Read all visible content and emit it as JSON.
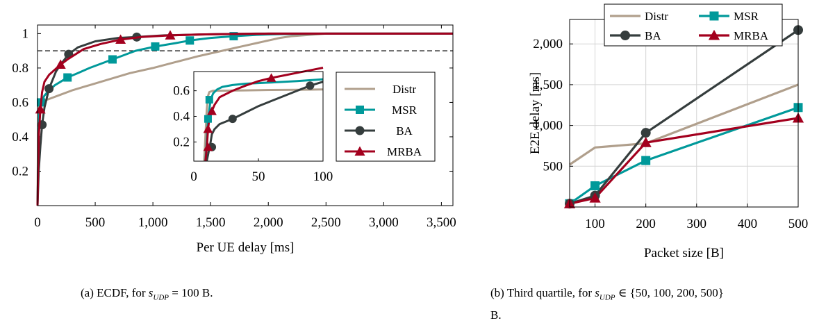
{
  "colors": {
    "Distr": "#b09f8c",
    "MSR": "#00999a",
    "BA": "#353d3d",
    "MRBA": "#a3001e",
    "threshold": "#000000"
  },
  "chart_data": [
    {
      "type": "line",
      "title": "",
      "xlabel": "Per UE delay [ms]",
      "ylabel": "",
      "xlim": [
        0,
        3600
      ],
      "ylim": [
        0,
        1.05
      ],
      "xticks": [
        "0",
        "500",
        "1,000",
        "1,500",
        "2,000",
        "2,500",
        "3,000",
        "3,500"
      ],
      "yticks": [
        "0.2",
        "0.4",
        "0.6",
        "0.8",
        "1"
      ],
      "reference_line": {
        "y": 0.9,
        "style": "dashed"
      },
      "legend": "inside-right",
      "series": [
        {
          "name": "Distr",
          "marker": "none",
          "x": [
            0,
            5,
            10,
            30,
            60,
            100,
            200,
            300,
            400,
            600,
            800,
            1000,
            1200,
            1400,
            1600,
            1800,
            1900,
            2000,
            2100,
            2200,
            2300,
            2400,
            2500,
            3600
          ],
          "y": [
            0,
            0.45,
            0.57,
            0.6,
            0.61,
            0.62,
            0.645,
            0.67,
            0.69,
            0.73,
            0.77,
            0.8,
            0.835,
            0.87,
            0.9,
            0.93,
            0.945,
            0.96,
            0.975,
            0.985,
            0.99,
            0.995,
            1.0,
            1.0
          ]
        },
        {
          "name": "MSR",
          "marker": "square",
          "x": [
            0,
            5,
            15,
            30,
            60,
            100,
            150,
            200,
            260,
            350,
            450,
            650,
            850,
            1020,
            1200,
            1320,
            1500,
            1700,
            1900,
            2100,
            2500,
            3600
          ],
          "y": [
            0,
            0.2,
            0.55,
            0.6,
            0.64,
            0.67,
            0.7,
            0.72,
            0.745,
            0.77,
            0.8,
            0.85,
            0.9,
            0.925,
            0.945,
            0.96,
            0.975,
            0.985,
            0.993,
            0.997,
            1.0,
            1.0
          ]
        },
        {
          "name": "BA",
          "marker": "circle",
          "x": [
            0,
            10,
            25,
            40,
            60,
            100,
            160,
            200,
            270,
            350,
            500,
            700,
            860,
            1100,
            1500,
            1700,
            1900,
            2200,
            3600
          ],
          "y": [
            0,
            0.2,
            0.35,
            0.47,
            0.57,
            0.68,
            0.78,
            0.82,
            0.88,
            0.92,
            0.955,
            0.975,
            0.98,
            0.99,
            0.996,
            0.998,
            1.0,
            1.0,
            1.0
          ]
        },
        {
          "name": "MRBA",
          "marker": "triangle",
          "x": [
            0,
            5,
            12,
            25,
            40,
            60,
            100,
            150,
            200,
            260,
            400,
            550,
            720,
            900,
            1150,
            1400,
            1700,
            2000,
            2500,
            3600
          ],
          "y": [
            0,
            0.2,
            0.42,
            0.56,
            0.66,
            0.72,
            0.76,
            0.79,
            0.82,
            0.85,
            0.91,
            0.94,
            0.965,
            0.98,
            0.99,
            0.995,
            0.998,
            1.0,
            1.0,
            1.0
          ]
        }
      ],
      "inset": {
        "xlim": [
          0,
          100
        ],
        "ylim": [
          0.05,
          0.75
        ],
        "xticks": [
          "0",
          "50",
          "100"
        ],
        "yticks": [
          "0.2",
          "0.4",
          "0.6"
        ],
        "series": [
          {
            "name": "Distr",
            "x": [
              8,
              10,
              11,
              12,
              15,
              20,
              40,
              60,
              80,
              100
            ],
            "y": [
              0.05,
              0.45,
              0.56,
              0.59,
              0.6,
              0.6,
              0.603,
              0.606,
              0.608,
              0.61
            ]
          },
          {
            "name": "MSR",
            "x": [
              9,
              10,
              11,
              12,
              13,
              15,
              18,
              22,
              30,
              40,
              60,
              80,
              100
            ],
            "y": [
              0.05,
              0.2,
              0.38,
              0.45,
              0.53,
              0.58,
              0.61,
              0.63,
              0.645,
              0.655,
              0.665,
              0.675,
              0.69
            ]
          },
          {
            "name": "BA",
            "x": [
              10,
              11,
              12,
              13,
              14,
              16,
              20,
              25,
              30,
              40,
              50,
              60,
              70,
              80,
              90,
              100
            ],
            "y": [
              0.05,
              0.1,
              0.15,
              0.2,
              0.26,
              0.3,
              0.34,
              0.36,
              0.38,
              0.43,
              0.48,
              0.52,
              0.56,
              0.6,
              0.64,
              0.67
            ]
          },
          {
            "name": "MRBA",
            "x": [
              9,
              10,
              11,
              12,
              13,
              14,
              16,
              20,
              30,
              40,
              50,
              60,
              70,
              80,
              90,
              100
            ],
            "y": [
              0.05,
              0.15,
              0.3,
              0.38,
              0.41,
              0.44,
              0.49,
              0.55,
              0.6,
              0.64,
              0.675,
              0.7,
              0.72,
              0.74,
              0.76,
              0.78
            ]
          }
        ]
      }
    },
    {
      "type": "line",
      "title": "",
      "xlabel": "Packet size [B]",
      "ylabel": "E2E delay [ms]",
      "xlim": [
        50,
        500
      ],
      "ylim": [
        0,
        2300
      ],
      "xticks": [
        "100",
        "200",
        "300",
        "400",
        "500"
      ],
      "yticks": [
        "500",
        "1,000",
        "1,500",
        "2,000"
      ],
      "legend": "top",
      "series": [
        {
          "name": "Distr",
          "marker": "none",
          "x": [
            50,
            100,
            200,
            500
          ],
          "y": [
            520,
            730,
            780,
            1500
          ]
        },
        {
          "name": "MSR",
          "marker": "square",
          "x": [
            50,
            100,
            200,
            500
          ],
          "y": [
            40,
            260,
            570,
            1220
          ]
        },
        {
          "name": "BA",
          "marker": "circle",
          "x": [
            50,
            100,
            200,
            500
          ],
          "y": [
            40,
            140,
            910,
            2170
          ]
        },
        {
          "name": "MRBA",
          "marker": "triangle",
          "x": [
            50,
            100,
            200,
            500
          ],
          "y": [
            40,
            110,
            790,
            1090
          ]
        }
      ]
    }
  ],
  "captions": {
    "a_prefix": "(a) ECDF, for ",
    "a_math": "s",
    "a_sub": "UDP",
    "a_suffix": " = 100 B.",
    "b_prefix": "(b) Third quartile, for ",
    "b_math": "s",
    "b_sub": "UDP",
    "b_set": " ∈ {50, 100, 200, 500}",
    "b_line2": "B."
  }
}
